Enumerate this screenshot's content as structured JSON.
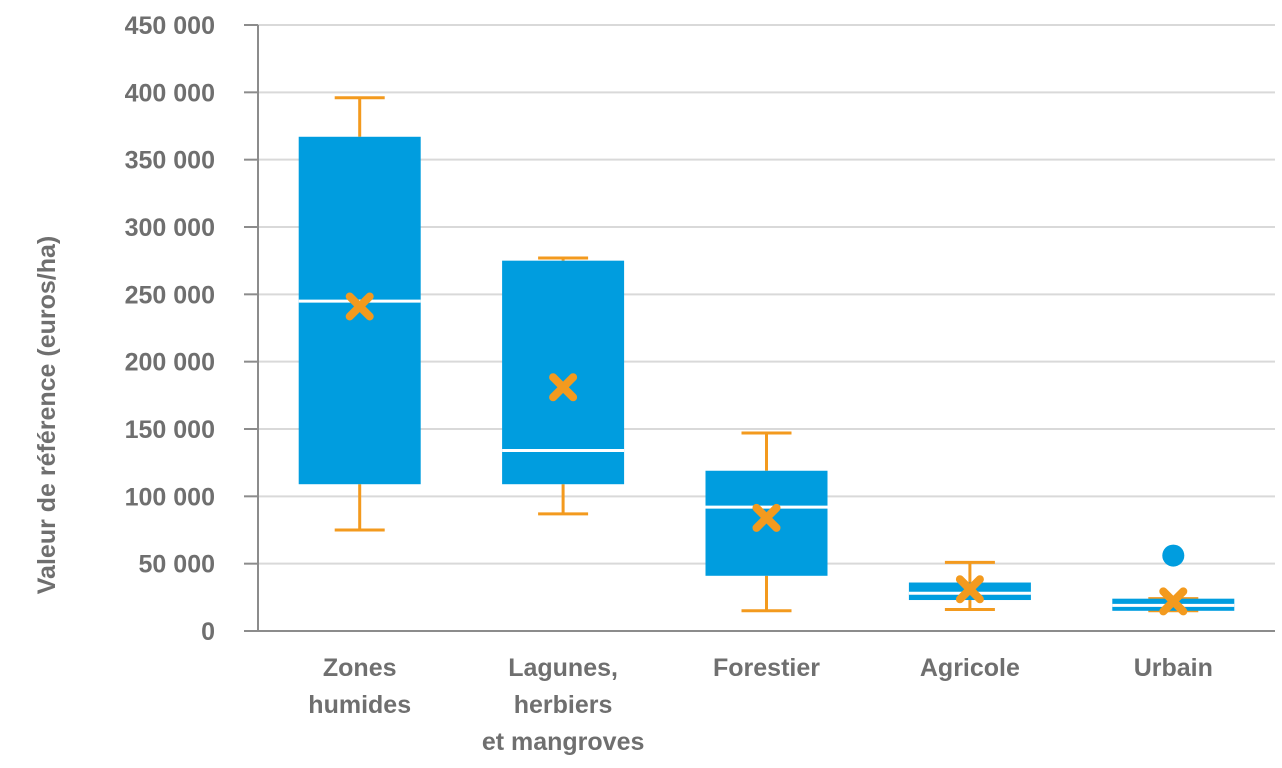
{
  "chart_data": {
    "type": "boxplot",
    "title": "",
    "xlabel": "",
    "ylabel": "Valeur de référence (euros/ha)",
    "ylim": [
      0,
      450000
    ],
    "yticks": [
      0,
      50000,
      100000,
      150000,
      200000,
      250000,
      300000,
      350000,
      400000,
      450000
    ],
    "ytick_labels": [
      "0",
      "50 000",
      "100 000",
      "150 000",
      "200 000",
      "250 000",
      "300 000",
      "350 000",
      "400 000",
      "450 000"
    ],
    "grid": true,
    "categories": [
      [
        "Zones",
        "humides"
      ],
      [
        "Lagunes,",
        "herbiers",
        "et mangroves"
      ],
      [
        "Forestier"
      ],
      [
        "Agricole"
      ],
      [
        "Urbain"
      ]
    ],
    "boxes": [
      {
        "whisker_low": 75000,
        "q1": 109000,
        "median": 245000,
        "q3": 367000,
        "whisker_high": 396000,
        "mean": 241000,
        "outliers": []
      },
      {
        "whisker_low": 87000,
        "q1": 109000,
        "median": 134000,
        "q3": 275000,
        "whisker_high": 277000,
        "mean": 181000,
        "outliers": []
      },
      {
        "whisker_low": 15000,
        "q1": 41000,
        "median": 92000,
        "q3": 119000,
        "whisker_high": 147000,
        "mean": 84000,
        "outliers": []
      },
      {
        "whisker_low": 16000,
        "q1": 23000,
        "median": 28000,
        "q3": 36000,
        "whisker_high": 51000,
        "mean": 31000,
        "outliers": []
      },
      {
        "whisker_low": 15000,
        "q1": 15000,
        "median": 19000,
        "q3": 24000,
        "whisker_high": 24000,
        "mean": 22000,
        "outliers": [
          56000
        ]
      }
    ],
    "colors": {
      "box": "#009ddf",
      "median": "#ffffff",
      "whisker": "#f39a1e",
      "mean": "#f39a1e",
      "outlier": "#009ddf",
      "grid": "#d9d9d9",
      "axis": "#8c8c8c",
      "text": "#6f6f6f"
    }
  }
}
